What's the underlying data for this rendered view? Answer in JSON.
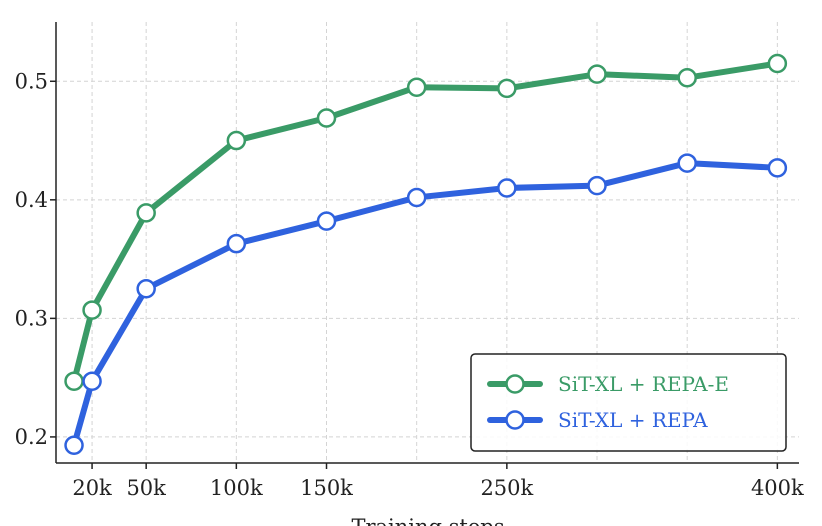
{
  "chart_data": {
    "type": "line",
    "title": "",
    "xlabel": "Training steps",
    "ylabel": "",
    "xlim": [
      0,
      412
    ],
    "ylim": [
      0.178,
      0.55
    ],
    "grid": true,
    "legend_position": "bottom-right",
    "x": [
      10,
      20,
      50,
      100,
      150,
      200,
      250,
      300,
      350,
      400
    ],
    "x_ticks": [
      {
        "value": 20,
        "label": "20k"
      },
      {
        "value": 50,
        "label": "50k"
      },
      {
        "value": 100,
        "label": "100k"
      },
      {
        "value": 150,
        "label": "150k"
      },
      {
        "value": 250,
        "label": "250k"
      },
      {
        "value": 400,
        "label": "400k"
      }
    ],
    "x_grid": [
      20,
      50,
      100,
      150,
      200,
      250,
      300,
      350,
      400
    ],
    "y_ticks": [
      {
        "value": 0.2,
        "label": "0.2"
      },
      {
        "value": 0.3,
        "label": "0.3"
      },
      {
        "value": 0.4,
        "label": "0.4"
      },
      {
        "value": 0.5,
        "label": "0.5"
      }
    ],
    "series": [
      {
        "name": "SiT-XL + REPA-E",
        "color": "#3a9b67",
        "values": [
          0.247,
          0.307,
          0.389,
          0.45,
          0.469,
          0.495,
          0.494,
          0.506,
          0.503,
          0.515
        ]
      },
      {
        "name": "SiT-XL + REPA",
        "color": "#2f62de",
        "values": [
          0.193,
          0.247,
          0.325,
          0.363,
          0.382,
          0.402,
          0.41,
          0.412,
          0.431,
          0.427
        ]
      }
    ]
  }
}
